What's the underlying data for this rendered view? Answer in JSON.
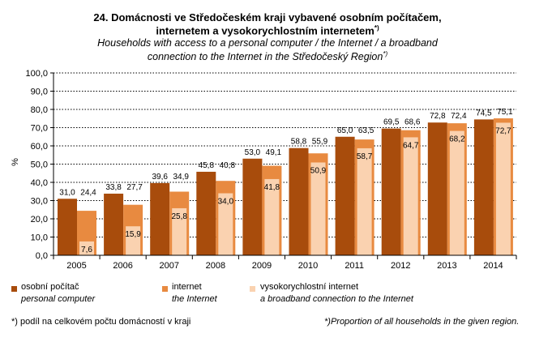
{
  "title_cz": "24. Domácnosti ve Středočeském kraji vybavené osobním počítačem,",
  "title_cz2": "internetem a vysokorychlostním internetem",
  "title_sup": "*)",
  "title_en": "Households with access to a personal computer / the Internet / a broadband",
  "title_en2": "connection to the Internet in the Středočeský Region",
  "footnote_cz": "*) podíl na celkovém počtu domácností v kraji",
  "footnote_en": "*)Proportion of all households in the given region.",
  "chart_data": {
    "type": "bar",
    "ylabel": "%",
    "ylim": [
      0,
      100
    ],
    "yticks": [
      "0,0",
      "10,0",
      "20,0",
      "30,0",
      "40,0",
      "50,0",
      "60,0",
      "70,0",
      "80,0",
      "90,0",
      "100,0"
    ],
    "categories": [
      "2005",
      "2006",
      "2007",
      "2008",
      "2009",
      "2010",
      "2011",
      "2012",
      "2013",
      "2014"
    ],
    "series": [
      {
        "name": "osobní počítač",
        "name_en": "personal computer",
        "color": "#A84C0C",
        "values": [
          31.0,
          33.8,
          39.6,
          45.8,
          53.0,
          58.8,
          65.0,
          69.5,
          72.8,
          74.5
        ]
      },
      {
        "name": "internet",
        "name_en": "the Internet",
        "color": "#E88A40",
        "values": [
          24.4,
          27.7,
          34.9,
          40.8,
          49.1,
          55.9,
          63.5,
          68.6,
          72.4,
          75.1
        ]
      },
      {
        "name": "vysokorychlostní internet",
        "name_en": "a broadband connection to the Internet",
        "color": "#FAD2B0",
        "values": [
          7.6,
          15.9,
          25.8,
          34.0,
          41.8,
          50.9,
          58.7,
          64.7,
          68.2,
          72.7
        ]
      }
    ],
    "grid": "dotted horizontal",
    "legend": "bottom"
  }
}
